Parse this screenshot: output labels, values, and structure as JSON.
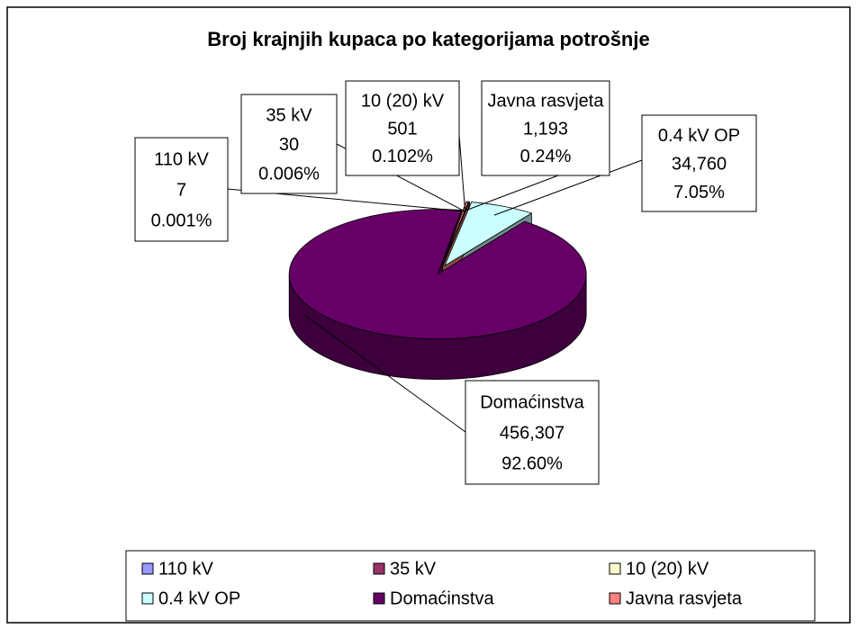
{
  "chart_data": {
    "type": "pie",
    "title": "Broj krajnjih kupaca po kategorijama potrošnje",
    "categories": [
      "110 kV",
      "35 kV",
      "10 (20) kV",
      "0.4 kV OP",
      "Domaćinstva",
      "Javna rasvjeta"
    ],
    "values": [
      7,
      30,
      501,
      34760,
      456307,
      1193
    ],
    "value_labels": [
      "7",
      "30",
      "501",
      "34,760",
      "456,307",
      "1,193"
    ],
    "percentage_labels": [
      "0.001%",
      "0.006%",
      "0.102%",
      "7.05%",
      "92.60%",
      "0.24%"
    ],
    "colors": [
      "#9999ff",
      "#993366",
      "#ffffcc",
      "#ccffff",
      "#660066",
      "#ff8080"
    ],
    "legend": "bottom"
  }
}
